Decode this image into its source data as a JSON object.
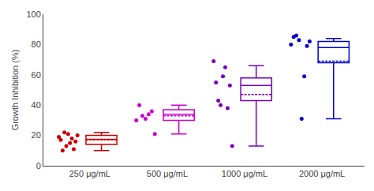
{
  "chart_data": {
    "type": "box",
    "categories": [
      "250 μg/mL",
      "500 μg/mL",
      "1000 μg/mL",
      "2000 μg/mL"
    ],
    "ylabel": "Growth Inhibition (%)",
    "boxes": [
      {
        "q1": 14,
        "median": 17.5,
        "q3": 20,
        "whislo": 10,
        "whishi": 22,
        "mean": 17
      },
      {
        "q1": 30,
        "median": 34,
        "q3": 37,
        "whislo": 21,
        "whishi": 40,
        "mean": 33
      },
      {
        "q1": 43,
        "median": 53,
        "q3": 58,
        "whislo": 13,
        "whishi": 66,
        "mean": 47
      },
      {
        "q1": 68,
        "median": 78,
        "q3": 82,
        "whislo": 31,
        "whishi": 84,
        "mean": 69
      }
    ],
    "points": [
      [
        19,
        17,
        10,
        22,
        13,
        21,
        15,
        18,
        11,
        16,
        20
      ],
      [
        30,
        40,
        33,
        31,
        34,
        36,
        21
      ],
      [
        69,
        55,
        43,
        40,
        59,
        65,
        38,
        53,
        13
      ],
      [
        80,
        85,
        86,
        83,
        31,
        59,
        79,
        82
      ]
    ],
    "colors": [
      "#cc0000",
      "#cc00cc",
      "#7700bb",
      "#0000cc"
    ],
    "ylim": [
      0,
      100
    ],
    "yticks": [
      0,
      20,
      40,
      60,
      80,
      100
    ],
    "grid": false
  }
}
